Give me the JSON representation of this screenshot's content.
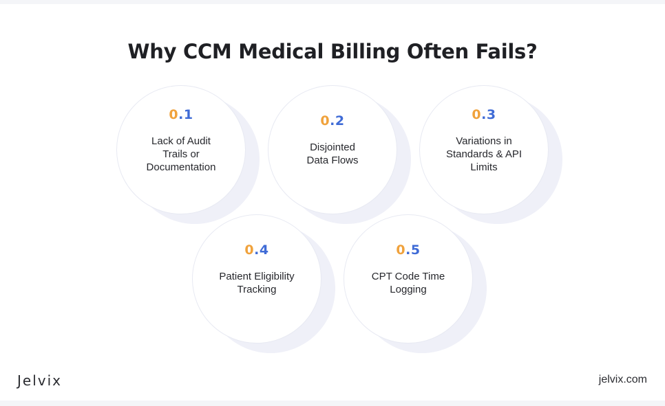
{
  "title": "Why CCM Medical Billing Often Fails?",
  "items": [
    {
      "num_lead": "0",
      "num_tail": ".1",
      "label_lines": [
        "Lack of Audit",
        "Trails or",
        "Documentation"
      ]
    },
    {
      "num_lead": "0",
      "num_tail": ".2",
      "label_lines": [
        "Disjointed",
        "Data Flows"
      ]
    },
    {
      "num_lead": "0",
      "num_tail": ".3",
      "label_lines": [
        "Variations in",
        "Standards & API",
        "Limits"
      ]
    },
    {
      "num_lead": "0",
      "num_tail": ".4",
      "label_lines": [
        "Patient Eligibility",
        "Tracking"
      ]
    },
    {
      "num_lead": "0",
      "num_tail": ".5",
      "label_lines": [
        "CPT Code Time",
        "Logging"
      ]
    }
  ],
  "footer": {
    "logo": "Jelvix",
    "site": "jelvix.com"
  },
  "colors": {
    "number_lead": "#f0a23c",
    "number_tail": "#3f6bd6",
    "text": "#1f2024"
  }
}
